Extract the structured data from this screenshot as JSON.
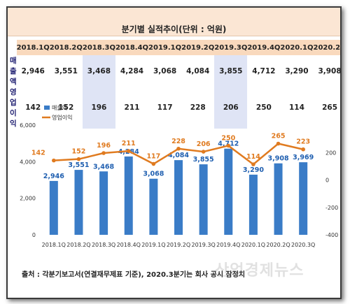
{
  "title": "분기별 실적추이(단위 : 억원)",
  "table": {
    "row_labels": [
      "매출액",
      "영업이익"
    ]
  },
  "legend": {
    "sales": "매출액",
    "profit": "영업이익"
  },
  "source": "출처 : 각분기보고서(연결재무제표 기준), 2020.3분기는 회사 공시 잠정치",
  "watermark": "산업경제뉴스",
  "colors": {
    "bar": "#3a7cc7",
    "line": "#e07b20",
    "title_bg": "#fbe6d4",
    "header_bg": "#f9d9bd",
    "highlight_bg": "#dfe4f5"
  },
  "chart_data": {
    "type": "bar",
    "categories": [
      "2018.1Q",
      "2018.2Q",
      "2018.3Q",
      "2018.4Q",
      "2019.1Q",
      "2019.2Q",
      "2019.3Q",
      "2019.4Q",
      "2020.1Q",
      "2020.2Q",
      "2020.3Q"
    ],
    "series": [
      {
        "name": "매출액",
        "type": "bar",
        "axis": "left",
        "values": [
          2946,
          3551,
          3468,
          4284,
          3068,
          4084,
          3855,
          4712,
          3290,
          3908,
          3969
        ],
        "labels": [
          "2,946",
          "3,551",
          "3,468",
          "4,284",
          "3,068",
          "4,084",
          "3,855",
          "4,712",
          "3,290",
          "3,908",
          "3,969"
        ]
      },
      {
        "name": "영업이익",
        "type": "line",
        "axis": "right",
        "values": [
          142,
          152,
          196,
          211,
          117,
          228,
          206,
          250,
          114,
          265,
          223
        ],
        "labels": [
          "142",
          "152",
          "196",
          "211",
          "117",
          "228",
          "206",
          "250",
          "114",
          "265",
          "223"
        ]
      }
    ],
    "y_left": {
      "ylim": [
        0,
        6000
      ],
      "ticks": [
        "0",
        "2,000",
        "4,000",
        "6,000"
      ]
    },
    "y_right": {
      "ylim": [
        -400,
        400
      ],
      "ticks": [
        "-400",
        "-200",
        "0",
        "200"
      ]
    },
    "legend_placement": "top-left",
    "grid": false
  }
}
